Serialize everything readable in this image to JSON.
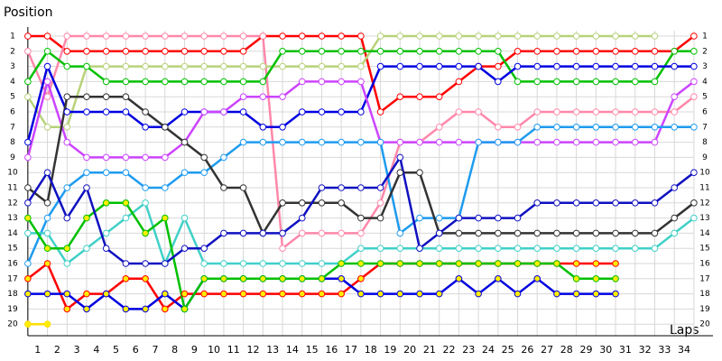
{
  "chart_data": {
    "type": "lapchart",
    "title": "Position",
    "x_label": "Laps",
    "x": [
      0,
      1,
      2,
      3,
      4,
      5,
      6,
      7,
      8,
      9,
      10,
      11,
      12,
      13,
      14,
      15,
      16,
      17,
      18,
      19,
      20,
      21,
      22,
      23,
      24,
      25,
      26,
      27,
      28,
      29,
      30,
      31,
      32,
      33,
      34
    ],
    "xlim": [
      -0.5,
      35
    ],
    "ylim": [
      21,
      0
    ],
    "xticks": [
      1,
      2,
      3,
      4,
      5,
      6,
      7,
      8,
      9,
      10,
      11,
      12,
      13,
      14,
      15,
      16,
      17,
      18,
      19,
      20,
      21,
      22,
      23,
      24,
      25,
      26,
      27,
      28,
      29,
      30,
      31,
      32,
      33,
      34
    ],
    "yticks": [
      1,
      2,
      3,
      4,
      5,
      6,
      7,
      8,
      9,
      10,
      11,
      12,
      13,
      14,
      15,
      16,
      17,
      18,
      19,
      20
    ],
    "grid": true,
    "series": [
      {
        "color": "#ff0000",
        "values": [
          1,
          1,
          2,
          2,
          2,
          2,
          2,
          2,
          2,
          2,
          2,
          2,
          1,
          1,
          1,
          1,
          1,
          1,
          6,
          5,
          5,
          5,
          4,
          3,
          3,
          2,
          2,
          2,
          2,
          2,
          2,
          2,
          2,
          2,
          1
        ]
      },
      {
        "color": "#ff88aa",
        "values": [
          2,
          5,
          1,
          1,
          1,
          1,
          1,
          1,
          1,
          1,
          1,
          1,
          1,
          15,
          14,
          14,
          14,
          14,
          12,
          8,
          8,
          7,
          6,
          6,
          7,
          7,
          6,
          6,
          6,
          6,
          6,
          6,
          6,
          6,
          5
        ]
      },
      {
        "color": "#b8d27a",
        "values": [
          5,
          7,
          7,
          3,
          3,
          3,
          3,
          3,
          3,
          3,
          3,
          3,
          3,
          3,
          3,
          3,
          3,
          3,
          1,
          1,
          1,
          1,
          1,
          1,
          1,
          1,
          1,
          1,
          1,
          1,
          1,
          1,
          1,
          null,
          null
        ]
      },
      {
        "color": "#00c000",
        "values": [
          4,
          2,
          3,
          3,
          4,
          4,
          4,
          4,
          4,
          4,
          4,
          4,
          4,
          2,
          2,
          2,
          2,
          2,
          2,
          2,
          2,
          2,
          2,
          2,
          2,
          4,
          4,
          4,
          4,
          4,
          4,
          4,
          4,
          2,
          2
        ]
      },
      {
        "color": "#0000e0",
        "values": [
          8,
          3,
          6,
          6,
          6,
          6,
          7,
          7,
          6,
          6,
          6,
          6,
          7,
          7,
          6,
          6,
          6,
          6,
          3,
          3,
          3,
          3,
          3,
          3,
          4,
          3,
          3,
          3,
          3,
          3,
          3,
          3,
          3,
          3,
          3
        ]
      },
      {
        "color": "#cc44ff",
        "values": [
          9,
          4,
          8,
          9,
          9,
          9,
          9,
          9,
          8,
          6,
          6,
          5,
          5,
          5,
          4,
          4,
          4,
          4,
          8,
          8,
          8,
          8,
          8,
          8,
          8,
          8,
          8,
          8,
          8,
          8,
          8,
          8,
          8,
          5,
          4
        ]
      },
      {
        "color": "#1e9bef",
        "values": [
          16,
          13,
          11,
          10,
          10,
          10,
          11,
          11,
          10,
          10,
          9,
          8,
          8,
          8,
          8,
          8,
          8,
          8,
          8,
          14,
          13,
          13,
          13,
          8,
          8,
          8,
          7,
          7,
          7,
          7,
          7,
          7,
          7,
          7,
          7
        ]
      },
      {
        "color": "#333333",
        "values": [
          11,
          12,
          5,
          5,
          5,
          5,
          6,
          7,
          8,
          9,
          11,
          11,
          14,
          12,
          12,
          12,
          12,
          13,
          13,
          10,
          10,
          14,
          14,
          14,
          14,
          14,
          14,
          14,
          14,
          14,
          14,
          14,
          14,
          13,
          12
        ]
      },
      {
        "color": "#ff0000",
        "marker_fill": "#ffee00",
        "values": [
          17,
          16,
          19,
          18,
          18,
          17,
          17,
          19,
          18,
          18,
          18,
          18,
          18,
          18,
          18,
          18,
          18,
          17,
          16,
          16,
          16,
          16,
          16,
          16,
          16,
          16,
          16,
          16,
          16,
          16,
          16,
          null,
          null,
          null,
          null
        ]
      },
      {
        "color": "#0000e0",
        "marker_fill": "#ffee00",
        "values": [
          18,
          18,
          18,
          19,
          18,
          19,
          19,
          18,
          19,
          17,
          17,
          17,
          17,
          17,
          17,
          17,
          17,
          18,
          18,
          18,
          18,
          18,
          17,
          18,
          17,
          18,
          17,
          18,
          18,
          18,
          18,
          null,
          null,
          null,
          null
        ]
      },
      {
        "color": "#40d0c8",
        "values": [
          14,
          14,
          16,
          15,
          14,
          13,
          12,
          16,
          13,
          16,
          16,
          16,
          16,
          16,
          16,
          16,
          16,
          15,
          15,
          15,
          15,
          15,
          15,
          15,
          15,
          15,
          15,
          15,
          15,
          15,
          15,
          15,
          15,
          14,
          13
        ]
      },
      {
        "color": "#00c000",
        "marker_fill": "#ffee00",
        "values": [
          13,
          15,
          15,
          13,
          12,
          12,
          14,
          13,
          19,
          17,
          17,
          17,
          17,
          17,
          17,
          17,
          16,
          16,
          16,
          16,
          16,
          16,
          16,
          16,
          16,
          16,
          16,
          16,
          17,
          17,
          17,
          null,
          null,
          null,
          null
        ]
      },
      {
        "color": "#1010c0",
        "values": [
          12,
          10,
          13,
          11,
          15,
          16,
          16,
          16,
          15,
          15,
          14,
          14,
          14,
          14,
          13,
          11,
          11,
          11,
          11,
          9,
          15,
          14,
          13,
          13,
          13,
          13,
          12,
          12,
          12,
          12,
          12,
          12,
          12,
          11,
          10
        ]
      },
      {
        "color": "#ffdd00",
        "marker_fill": "#ffee00",
        "values": [
          20,
          20,
          null,
          null,
          null,
          null,
          null,
          null,
          null,
          null,
          null,
          null,
          null,
          null,
          null,
          null,
          null,
          null,
          null,
          null,
          null,
          null,
          null,
          null,
          null,
          null,
          null,
          null,
          null,
          null,
          null,
          null,
          null,
          null,
          null
        ]
      }
    ]
  }
}
